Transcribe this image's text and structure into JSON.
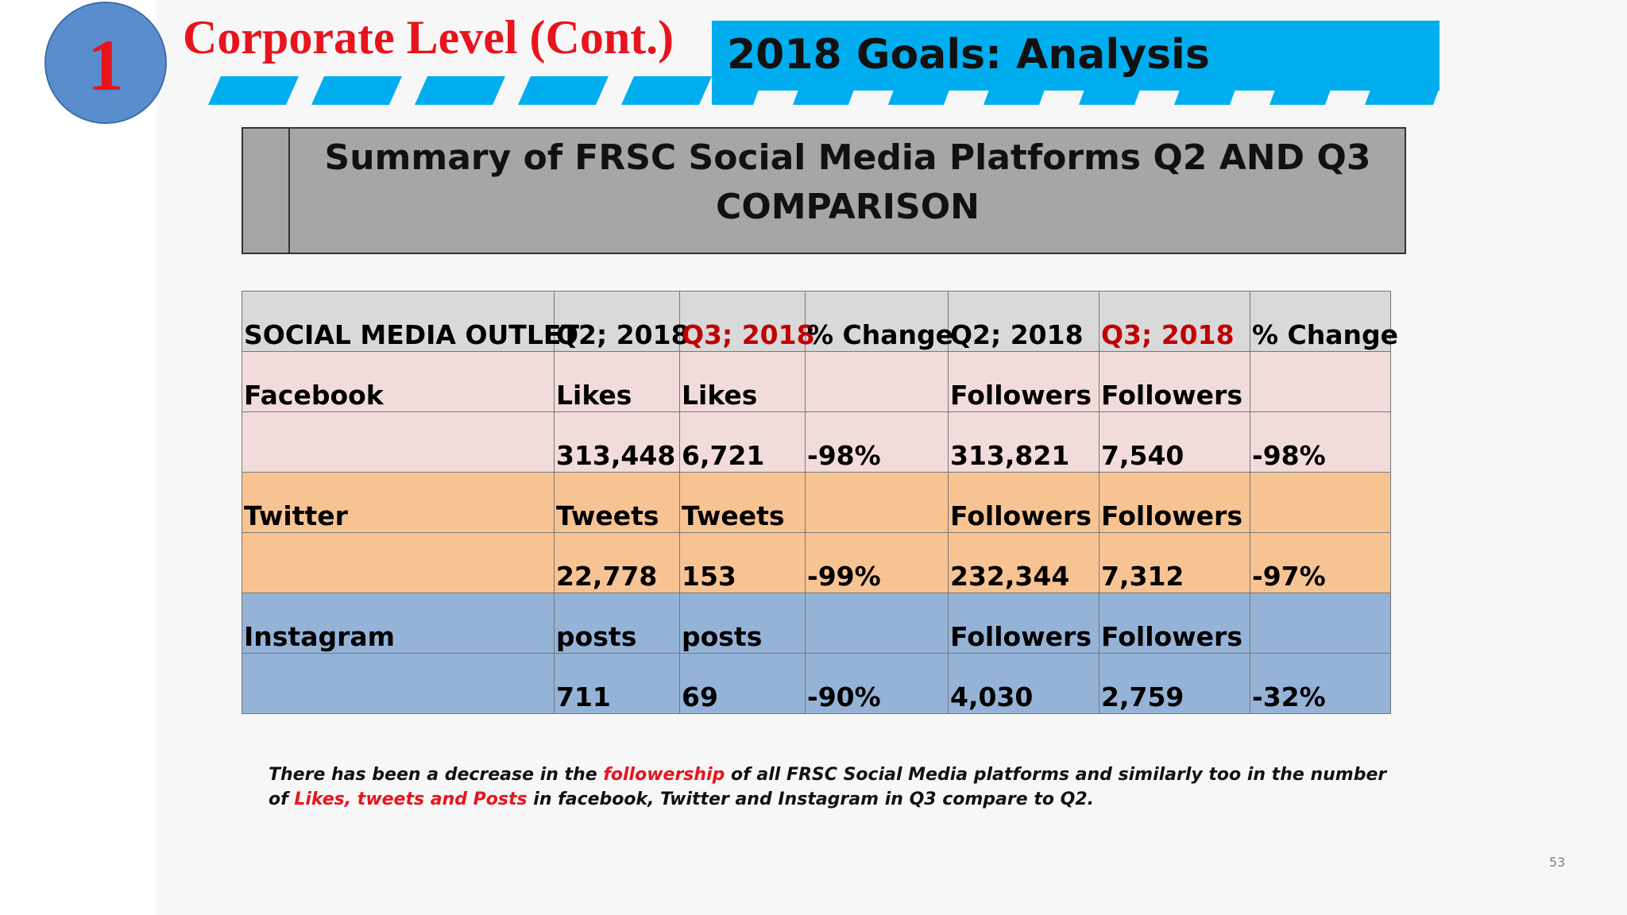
{
  "badge": {
    "number": "1"
  },
  "header": {
    "level_title": "Corporate Level (Cont.)",
    "goals_title": "2018 Goals: Analysis"
  },
  "summary": {
    "title_line1": "Summary of FRSC Social Media Platforms Q2 AND Q3",
    "title_line2": "COMPARISON"
  },
  "table": {
    "headers": [
      "SOCIAL MEDIA OUTLET",
      "Q2; 2018",
      "Q3; 2018",
      "% Change",
      "Q2; 2018",
      "Q3; 2018",
      "% Change"
    ],
    "rows": [
      [
        "Facebook",
        "Likes",
        "Likes",
        "",
        "Followers",
        "Followers",
        ""
      ],
      [
        "",
        "313,448",
        "6,721",
        "-98%",
        "313,821",
        "7,540",
        "-98%"
      ],
      [
        "Twitter",
        "Tweets",
        "Tweets",
        "",
        "Followers",
        "Followers",
        ""
      ],
      [
        "",
        "22,778",
        "153",
        "-99%",
        "232,344",
        "7,312",
        "-97%"
      ],
      [
        "Instagram",
        "posts",
        "posts",
        "",
        "Followers",
        "Followers",
        ""
      ],
      [
        "",
        "711",
        "69",
        "-90%",
        "4,030",
        "2,759",
        "-32%"
      ]
    ]
  },
  "footnote": {
    "part1": "There has been a decrease in the ",
    "highlight1": "followership",
    "part2": " of all FRSC Social Media platforms and similarly too in the number of ",
    "highlight2": "Likes, tweets and Posts",
    "part3": " in facebook, Twitter  and Instagram  in Q3 compare to Q2."
  },
  "page_number": "53",
  "colors": {
    "badge": "#5a8dcd",
    "title_red": "#e8141d",
    "goals_blue": "#00aeef",
    "summary_gray": "#a6a6a6",
    "header_gray": "#d9d9d9",
    "facebook_pink": "#f2dcdb",
    "twitter_orange": "#f8c393",
    "instagram_blue": "#95b3d7",
    "q3_red": "#c00000"
  }
}
